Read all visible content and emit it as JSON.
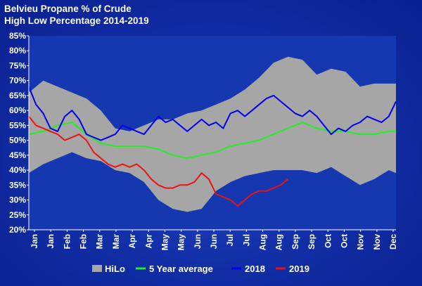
{
  "chart_data": {
    "type": "area",
    "title": "Belvieu Propane % of Crude",
    "subtitle": "High Low Percentage 2014-2019",
    "ylim": [
      20,
      85
    ],
    "y_ticks": [
      "20%",
      "25%",
      "30%",
      "35%",
      "40%",
      "45%",
      "50%",
      "55%",
      "60%",
      "65%",
      "70%",
      "75%",
      "80%",
      "85%"
    ],
    "x_ticks": [
      "Jan",
      "Jan",
      "Feb",
      "Feb",
      "Mar",
      "Mar",
      "Apr",
      "Apr",
      "May",
      "May",
      "Jun",
      "Jun",
      "Jul",
      "Jul",
      "Aug",
      "Aug",
      "Sep",
      "Sep",
      "Oct",
      "Oct",
      "Nov",
      "Nov",
      "Dec"
    ],
    "x_note": "x values are weeks of the year (1-52)",
    "grid": false,
    "legend_position": "bottom",
    "hilo": {
      "name": "HiLo",
      "color": "#a6a6a6",
      "x": [
        1,
        3,
        5,
        7,
        9,
        11,
        13,
        15,
        17,
        19,
        21,
        23,
        25,
        27,
        29,
        31,
        33,
        35,
        37,
        39,
        41,
        43,
        45,
        47,
        49,
        51,
        52
      ],
      "high": [
        66,
        70,
        68,
        66,
        64,
        60,
        54,
        53,
        55,
        57,
        57,
        59,
        60,
        62,
        64,
        67,
        71,
        76,
        78,
        77,
        72,
        74,
        73,
        68,
        69,
        69,
        69
      ],
      "low": [
        39,
        42,
        44,
        46,
        44,
        43,
        40,
        39,
        36,
        30,
        27,
        26,
        27,
        33,
        36,
        38,
        39,
        40,
        40,
        40,
        39,
        41,
        38,
        35,
        37,
        40,
        39
      ]
    },
    "series": [
      {
        "name": "5 Year average",
        "color": "#22ee22",
        "x": [
          1,
          3,
          5,
          7,
          9,
          11,
          13,
          15,
          17,
          19,
          21,
          23,
          25,
          27,
          29,
          31,
          33,
          35,
          37,
          39,
          41,
          43,
          45,
          47,
          49,
          51,
          52
        ],
        "values": [
          52,
          53,
          55,
          56,
          52,
          49,
          48,
          48,
          48,
          47,
          45,
          44,
          45,
          46,
          48,
          49,
          50,
          52,
          54,
          56,
          54,
          53,
          53,
          52,
          52,
          53,
          53
        ]
      },
      {
        "name": "2018",
        "color": "#0000ee",
        "x": [
          1,
          2,
          3,
          4,
          5,
          6,
          7,
          8,
          9,
          10,
          11,
          12,
          13,
          14,
          15,
          16,
          17,
          18,
          19,
          20,
          21,
          22,
          23,
          24,
          25,
          26,
          27,
          28,
          29,
          30,
          31,
          32,
          33,
          34,
          35,
          36,
          37,
          38,
          39,
          40,
          41,
          42,
          43,
          44,
          45,
          46,
          47,
          48,
          49,
          50,
          51,
          52
        ],
        "values": [
          68,
          62,
          59,
          54,
          53,
          58,
          60,
          57,
          52,
          51,
          50,
          51,
          52,
          55,
          54,
          53,
          52,
          55,
          58,
          56,
          57,
          55,
          53,
          55,
          57,
          55,
          56,
          54,
          59,
          60,
          58,
          60,
          62,
          64,
          65,
          63,
          61,
          59,
          58,
          60,
          58,
          55,
          52,
          54,
          53,
          55,
          56,
          58,
          57,
          56,
          58,
          63
        ]
      },
      {
        "name": "2019",
        "color": "#ee1111",
        "x": [
          1,
          2,
          3,
          4,
          5,
          6,
          7,
          8,
          9,
          10,
          11,
          12,
          13,
          14,
          15,
          16,
          17,
          18,
          19,
          20,
          21,
          22,
          23,
          24,
          25,
          26,
          27,
          28,
          29,
          30,
          31,
          32,
          33,
          34,
          35,
          36,
          37
        ],
        "values": [
          58,
          55,
          54,
          53,
          52,
          50,
          51,
          52,
          50,
          46,
          44,
          42,
          41,
          42,
          41,
          42,
          40,
          37,
          35,
          34,
          34,
          35,
          35,
          36,
          39,
          37,
          32,
          31,
          30,
          28,
          30,
          32,
          33,
          33,
          34,
          35,
          37
        ]
      }
    ]
  },
  "legend": {
    "hilo_label": "HiLo",
    "avg_label": "5 Year average",
    "y2018_label": "2018",
    "y2019_label": "2019"
  }
}
